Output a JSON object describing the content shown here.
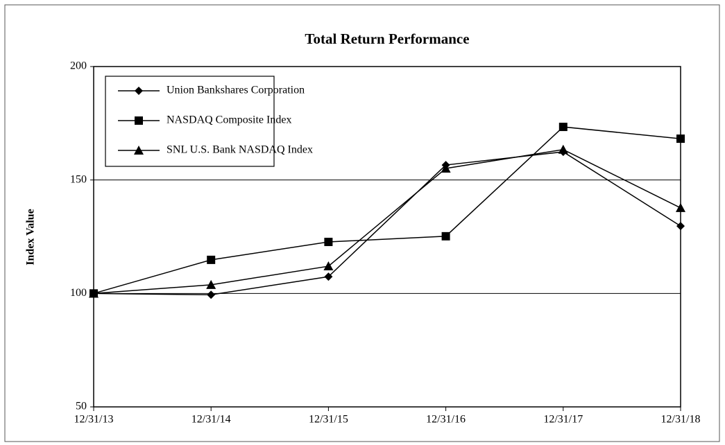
{
  "chart_data": {
    "type": "line",
    "title": "Total Return Performance",
    "y_label": "Index Value",
    "categories": [
      "12/31/13",
      "12/31/14",
      "12/31/15",
      "12/31/16",
      "12/31/17",
      "12/31/18"
    ],
    "series": [
      {
        "name": "Union Bankshares Corporation",
        "color": "#000000",
        "marker": "diamond",
        "values": [
          100,
          99.4,
          107.4,
          156.6,
          162.4,
          129.7
        ]
      },
      {
        "name": "NASDAQ Composite Index",
        "color": "#000000",
        "marker": "square",
        "values": [
          100,
          114.8,
          122.7,
          125.2,
          173.4,
          168.2
        ]
      },
      {
        "name": "SNL U.S. Bank NASDAQ Index",
        "color": "#000000",
        "marker": "triangle",
        "values": [
          100,
          103.8,
          112.0,
          155.1,
          163.4,
          137.7
        ]
      }
    ],
    "ylim": [
      50,
      200
    ],
    "yticks": [
      50,
      100,
      150,
      200
    ],
    "grid": true,
    "legend": "top-left"
  }
}
